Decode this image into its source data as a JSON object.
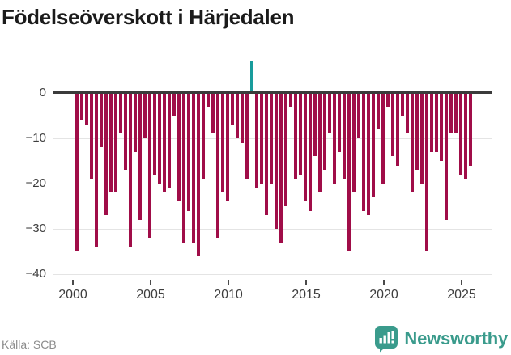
{
  "title": "Födelseöverskott i Härjedalen",
  "source": "Källa: SCB",
  "branding": {
    "name": "Newsworthy"
  },
  "colors": {
    "negative_bar": "#a00d48",
    "positive_bar": "#189c9c",
    "axis_line": "#3b3b3b",
    "gridline": "#e4e4e4",
    "tick_label": "#3d3d3d",
    "source_text": "#8c8c8c",
    "brand_teal": "#3a9b8c",
    "title_text": "#1b1b1b",
    "background": "#ffffff"
  },
  "chart_data": {
    "type": "bar",
    "title": "Födelseöverskott i Härjedalen",
    "xlabel": "",
    "ylabel": "",
    "x_start": 2000.1,
    "x_end": 2025.6,
    "x_ticks": [
      2000,
      2005,
      2010,
      2015,
      2020,
      2025
    ],
    "x_tick_labels": [
      "2000",
      "2005",
      "2010",
      "2015",
      "2020",
      "2025"
    ],
    "y_ticks": [
      0,
      -10,
      -20,
      -30,
      -40
    ],
    "y_tick_labels": [
      "0",
      "−10",
      "−20",
      "−30",
      "−40"
    ],
    "ylim": [
      -40,
      8
    ],
    "grid": "horizontal",
    "legend": "none",
    "values": [
      -35,
      -6,
      -7,
      -19,
      -34,
      -12,
      -27,
      -22,
      -22,
      -9,
      -17,
      -34,
      -13,
      -28,
      -10,
      -32,
      -18,
      -20,
      -22,
      -21,
      -5,
      -24,
      -33,
      -26,
      -33,
      -36,
      -19,
      -3,
      -9,
      -32,
      -22,
      -24,
      -7,
      -10,
      -11,
      -19,
      7,
      -21,
      -20,
      -27,
      -20,
      -30,
      -33,
      -25,
      -3,
      -19,
      -18,
      -24,
      -26,
      -14,
      -22,
      -17,
      -9,
      -20,
      -13,
      -19,
      -35,
      -22,
      -10,
      -26,
      -27,
      -23,
      -8,
      -20,
      -3,
      -14,
      -16,
      -5,
      -9,
      -22,
      -17,
      -20,
      -35,
      -13,
      -13,
      -15,
      -28,
      -9,
      -9,
      -18,
      -19,
      -16
    ]
  }
}
